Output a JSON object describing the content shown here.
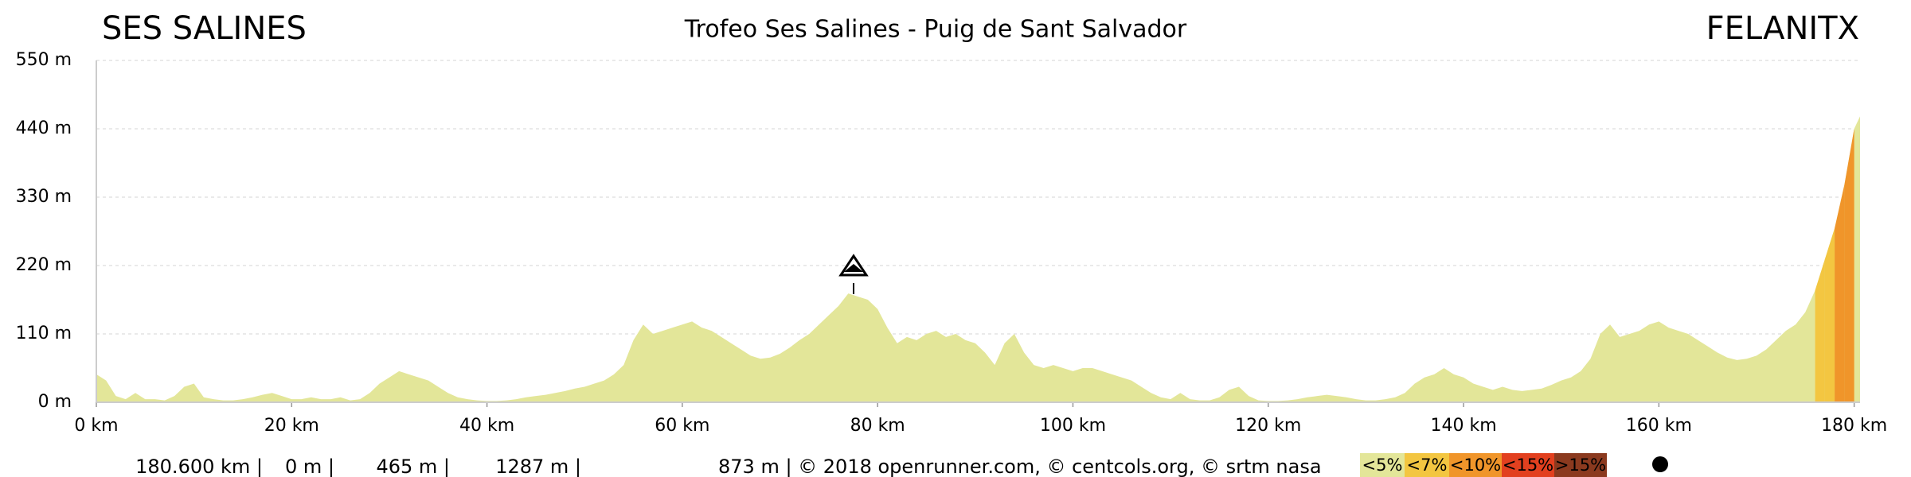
{
  "chart_data": {
    "type": "area",
    "title": "Trofeo Ses Salines - Puig de Sant Salvador",
    "start_label": "SES SALINES",
    "end_label": "FELANITX",
    "x": [
      0,
      1,
      2,
      3,
      4,
      5,
      6,
      7,
      8,
      9,
      10,
      11,
      12,
      13,
      14,
      15,
      16,
      17,
      18,
      19,
      20,
      21,
      22,
      23,
      24,
      25,
      26,
      27,
      28,
      29,
      30,
      31,
      32,
      33,
      34,
      35,
      36,
      37,
      38,
      39,
      40,
      41,
      42,
      43,
      44,
      45,
      46,
      47,
      48,
      49,
      50,
      51,
      52,
      53,
      54,
      55,
      56,
      57,
      58,
      59,
      60,
      61,
      62,
      63,
      64,
      65,
      66,
      67,
      68,
      69,
      70,
      71,
      72,
      73,
      74,
      75,
      76,
      77,
      78,
      79,
      80,
      81,
      82,
      83,
      84,
      85,
      86,
      87,
      88,
      89,
      90,
      91,
      92,
      93,
      94,
      95,
      96,
      97,
      98,
      99,
      100,
      101,
      102,
      103,
      104,
      105,
      106,
      107,
      108,
      109,
      110,
      111,
      112,
      113,
      114,
      115,
      116,
      117,
      118,
      119,
      120,
      121,
      122,
      123,
      124,
      125,
      126,
      127,
      128,
      129,
      130,
      131,
      132,
      133,
      134,
      135,
      136,
      137,
      138,
      139,
      140,
      141,
      142,
      143,
      144,
      145,
      146,
      147,
      148,
      149,
      150,
      151,
      152,
      153,
      154,
      155,
      156,
      157,
      158,
      159,
      160,
      161,
      162,
      163,
      164,
      165,
      166,
      167,
      168,
      169,
      170,
      171,
      172,
      173,
      174,
      175,
      176,
      177,
      178,
      179,
      180,
      180.6
    ],
    "values": [
      45,
      35,
      10,
      5,
      15,
      5,
      5,
      3,
      10,
      25,
      30,
      8,
      5,
      3,
      3,
      5,
      8,
      12,
      15,
      10,
      5,
      5,
      8,
      5,
      5,
      8,
      3,
      5,
      15,
      30,
      40,
      50,
      45,
      40,
      35,
      25,
      15,
      8,
      5,
      3,
      2,
      2,
      3,
      5,
      8,
      10,
      12,
      15,
      18,
      22,
      25,
      30,
      35,
      45,
      60,
      100,
      125,
      110,
      115,
      120,
      125,
      130,
      120,
      115,
      105,
      95,
      85,
      75,
      70,
      72,
      78,
      88,
      100,
      110,
      125,
      140,
      155,
      175,
      170,
      165,
      150,
      120,
      95,
      105,
      100,
      110,
      115,
      105,
      110,
      100,
      95,
      80,
      60,
      95,
      110,
      80,
      60,
      55,
      60,
      55,
      50,
      55,
      55,
      50,
      45,
      40,
      35,
      25,
      15,
      8,
      5,
      15,
      5,
      3,
      3,
      8,
      20,
      25,
      10,
      3,
      2,
      2,
      3,
      5,
      8,
      10,
      12,
      10,
      8,
      5,
      3,
      3,
      5,
      8,
      15,
      30,
      40,
      45,
      55,
      45,
      40,
      30,
      25,
      20,
      25,
      20,
      18,
      20,
      22,
      28,
      35,
      40,
      50,
      70,
      110,
      125,
      105,
      110,
      115,
      125,
      130,
      120,
      115,
      110,
      100,
      90,
      80,
      72,
      68,
      70,
      75,
      85,
      100,
      115,
      125,
      145,
      180,
      230,
      280,
      350,
      440,
      460
    ],
    "xlim": [
      0,
      180.6
    ],
    "ylim": [
      0,
      550
    ],
    "xticks": [
      {
        "value": 0,
        "label": "0 km"
      },
      {
        "value": 20,
        "label": "20 km"
      },
      {
        "value": 40,
        "label": "40 km"
      },
      {
        "value": 60,
        "label": "60 km"
      },
      {
        "value": 80,
        "label": "80 km"
      },
      {
        "value": 100,
        "label": "100 km"
      },
      {
        "value": 120,
        "label": "120 km"
      },
      {
        "value": 140,
        "label": "140 km"
      },
      {
        "value": 160,
        "label": "160 km"
      },
      {
        "value": 180,
        "label": "180 km"
      }
    ],
    "yticks": [
      {
        "value": 0,
        "label": "0 m"
      },
      {
        "value": 110,
        "label": "110 m"
      },
      {
        "value": 220,
        "label": "220 m"
      },
      {
        "value": 330,
        "label": "330 m"
      },
      {
        "value": 440,
        "label": "440 m"
      },
      {
        "value": 550,
        "label": "550 m"
      }
    ],
    "grid": true,
    "grade_classes": [
      {
        "label": "<5%",
        "value": 5,
        "color": "#e3e699"
      },
      {
        "label": "<7%",
        "value": 7,
        "color": "#f3c641"
      },
      {
        "label": "<10%",
        "value": 10,
        "color": "#f0952a"
      },
      {
        "label": "<15%",
        "value": 15,
        "color": "#e2401f"
      },
      {
        "label": ">15%",
        "value": 15,
        "color": "#8b3a1f"
      }
    ],
    "footer": [
      "180.600 km |",
      "0 m |",
      "465 m |",
      "1287 m |",
      "873 m | © 2018 openrunner.com, © centcols.org, © srtm nasa"
    ]
  }
}
